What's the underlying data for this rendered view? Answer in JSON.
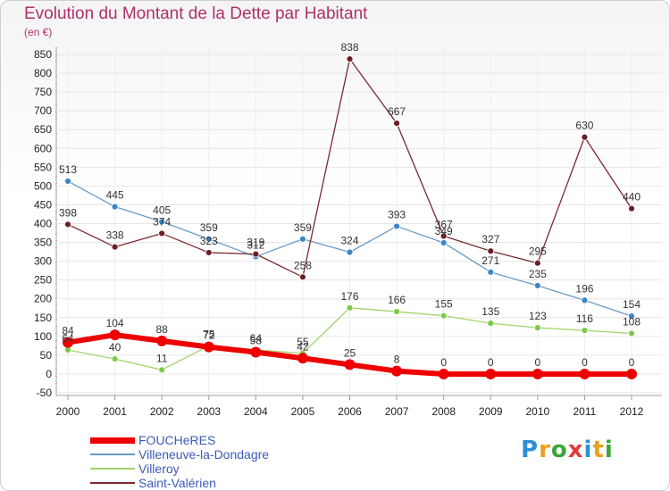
{
  "title": "Evolution du Montant de la Dette par Habitant",
  "subtitle": "(en €)",
  "logo": {
    "text": "Proxiti"
  },
  "colors": {
    "FOUCHeRES": "#ee0000",
    "Villeneuve-la-Dondagre": "#6b9bc7",
    "Villeroy": "#a2d46a",
    "Saint-Valérien": "#7a2a30"
  },
  "chart_data": {
    "type": "line",
    "title": "Evolution du Montant de la Dette par Habitant",
    "subtitle": "(en €)",
    "xlabel": "",
    "ylabel": "",
    "x": [
      "2000",
      "2001",
      "2002",
      "2003",
      "2004",
      "2005",
      "2006",
      "2007",
      "2008",
      "2009",
      "2010",
      "2011",
      "2012"
    ],
    "ylim": [
      -50,
      850
    ],
    "yticks": [
      -50,
      0,
      50,
      100,
      150,
      200,
      250,
      300,
      350,
      400,
      450,
      500,
      550,
      600,
      650,
      700,
      750,
      800,
      850
    ],
    "grid": true,
    "legend": "bottom-left",
    "series": [
      {
        "name": "FOUCHeRES",
        "values": [
          84,
          104,
          88,
          72,
          58,
          42,
          25,
          8,
          0,
          0,
          0,
          0,
          0
        ]
      },
      {
        "name": "Villeneuve-la-Dondagre",
        "values": [
          513,
          445,
          405,
          359,
          312,
          359,
          324,
          393,
          349,
          271,
          235,
          196,
          154
        ]
      },
      {
        "name": "Villeroy",
        "values": [
          64,
          40,
          11,
          75,
          64,
          55,
          176,
          166,
          155,
          135,
          123,
          116,
          108
        ]
      },
      {
        "name": "Saint-Valérien",
        "values": [
          398,
          338,
          374,
          323,
          319,
          258,
          838,
          667,
          367,
          327,
          295,
          630,
          440
        ]
      }
    ]
  }
}
